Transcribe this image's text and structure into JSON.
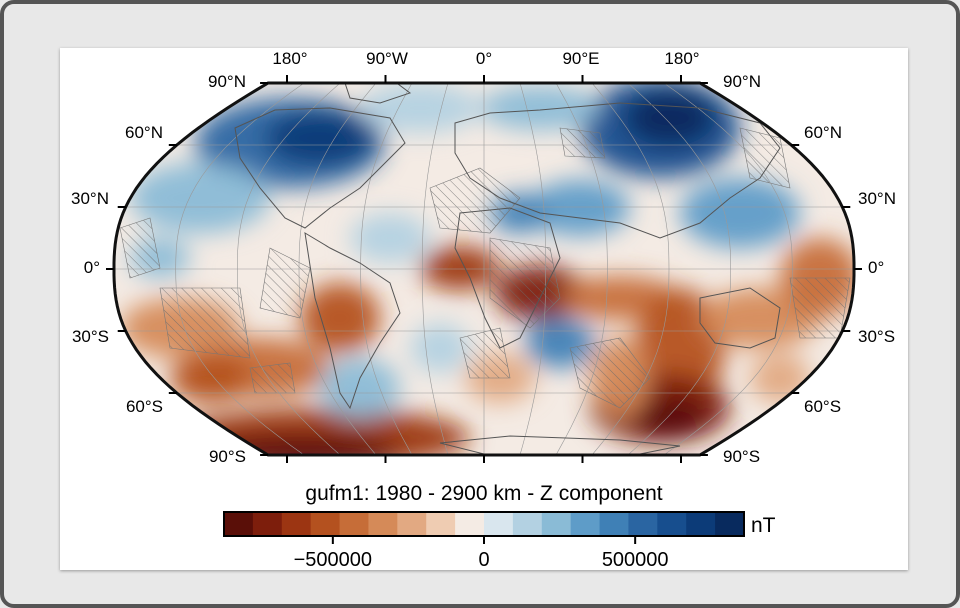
{
  "figure": {
    "title": "gufm1: 1980 - 2900 km - Z component",
    "unit": "nT"
  },
  "axes": {
    "longitude_ticks": [
      "180°",
      "90°W",
      "0°",
      "90°E",
      "180°"
    ],
    "latitude_ticks_left": [
      "90°N",
      "60°N",
      "30°N",
      "0°",
      "30°S",
      "60°S",
      "90°S"
    ],
    "latitude_ticks_right": [
      "90°N",
      "60°N",
      "30°N",
      "0°",
      "30°S",
      "60°S",
      "90°S"
    ]
  },
  "colorbar": {
    "tick_labels": [
      "−500000",
      "0",
      "500000"
    ],
    "tick_values": [
      -500000,
      0,
      500000
    ],
    "range": [
      -860000,
      860000
    ],
    "colors": [
      "#5a0f08",
      "#7d1e0c",
      "#9c3512",
      "#b4511f",
      "#c66d38",
      "#d58a58",
      "#e2a982",
      "#efccb2",
      "#f4ebe4",
      "#d9e6ee",
      "#b3d1e2",
      "#8abbd6",
      "#5e9cc8",
      "#3f80b6",
      "#2a65a2",
      "#174e8e",
      "#0c3b78",
      "#082a5e"
    ]
  },
  "projection": "Robinson",
  "colors": {
    "frame_border": "#555555",
    "coastline": "#555555",
    "negative": "#7d1e0c",
    "positive": "#0c3b78",
    "neutral": "#f4ebe4"
  }
}
